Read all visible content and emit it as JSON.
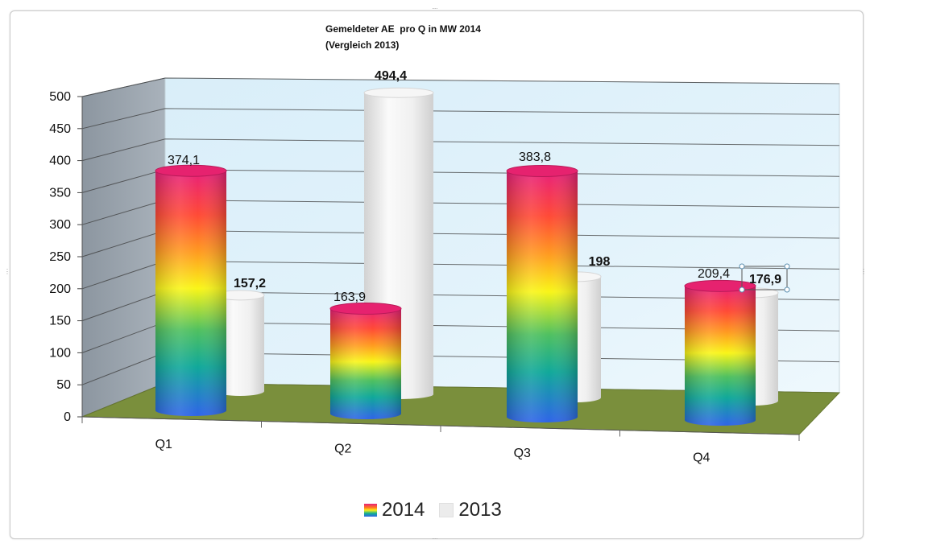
{
  "chart_data": {
    "type": "bar",
    "title": "Gemeldeter AE  pro Q in MW 2014",
    "subtitle": "(Vergleich 2013)",
    "categories": [
      "Q1",
      "Q2",
      "Q3",
      "Q4"
    ],
    "series": [
      {
        "name": "2014",
        "values": [
          374.1,
          163.9,
          383.8,
          209.4
        ],
        "labels": [
          "374,1",
          "163,9",
          "383,8",
          "209,4"
        ]
      },
      {
        "name": "2013",
        "values": [
          157.2,
          494.4,
          198,
          176.9
        ],
        "labels": [
          "157,2",
          "494,4",
          "198",
          "176,9"
        ]
      }
    ],
    "ylim": [
      0,
      500
    ],
    "yticks": [
      "0",
      "50",
      "100",
      "150",
      "200",
      "250",
      "300",
      "350",
      "400",
      "450",
      "500"
    ],
    "grid": true,
    "legend_position": "bottom",
    "style": "3d-cylinder",
    "colors": {
      "wall_back": "#e4f3fb",
      "wall_side": "#9aa4ae",
      "floor": "#7a8f3c",
      "series_2013": "#ececec",
      "series_2014_gradient": [
        "#e8207a",
        "#ff5030",
        "#ff9a20",
        "#f9ef18",
        "#10b090",
        "#2f64e8"
      ]
    }
  }
}
